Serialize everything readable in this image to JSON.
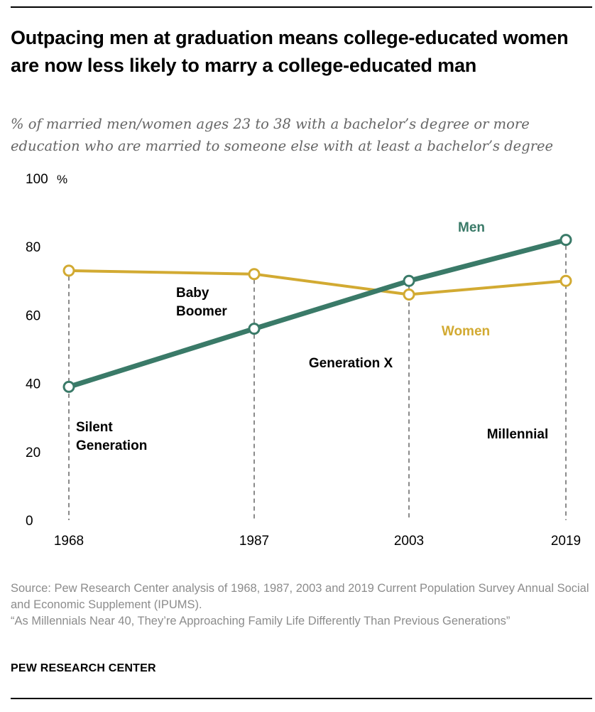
{
  "title": "Outpacing men at graduation means college-educated women are now less likely to marry a college-educated man",
  "subtitle": "% of married men/women ages 23 to 38 with a bachelor’s degree or more education who are married to someone else with at least a bachelor’s degree",
  "footer": {
    "source_line1": "Source: Pew Research Center analysis of 1968, 1987, 2003 and 2019 Current Population Survey Annual Social and Economic Supplement (IPUMS).",
    "source_line2": "“As Millennials Near 40, They’re Approaching Family Life Differently Than Previous Generations”"
  },
  "brand": "PEW RESEARCH CENTER",
  "chart_data": {
    "type": "line",
    "x": [
      1968,
      1987,
      2003,
      2019
    ],
    "x_tick_labels": [
      "1968",
      "1987",
      "2003",
      "2019"
    ],
    "y_tick_labels": [
      "0",
      "20",
      "40",
      "60",
      "80",
      "100"
    ],
    "y_unit": "%",
    "ylim": [
      0,
      100
    ],
    "grid": false,
    "series": [
      {
        "name": "Men",
        "values": [
          39,
          56,
          70,
          82
        ],
        "color": "#3a7a68"
      },
      {
        "name": "Women",
        "values": [
          73,
          72,
          66,
          70
        ],
        "color": "#d2aa32"
      }
    ],
    "generation_labels": [
      {
        "text": [
          "Silent",
          "Generation"
        ]
      },
      {
        "text": [
          "Baby",
          "Boomer"
        ]
      },
      {
        "text": [
          "Generation X"
        ]
      },
      {
        "text": [
          "Millennial"
        ]
      }
    ],
    "legend_placement": "direct labels at end of lines"
  }
}
